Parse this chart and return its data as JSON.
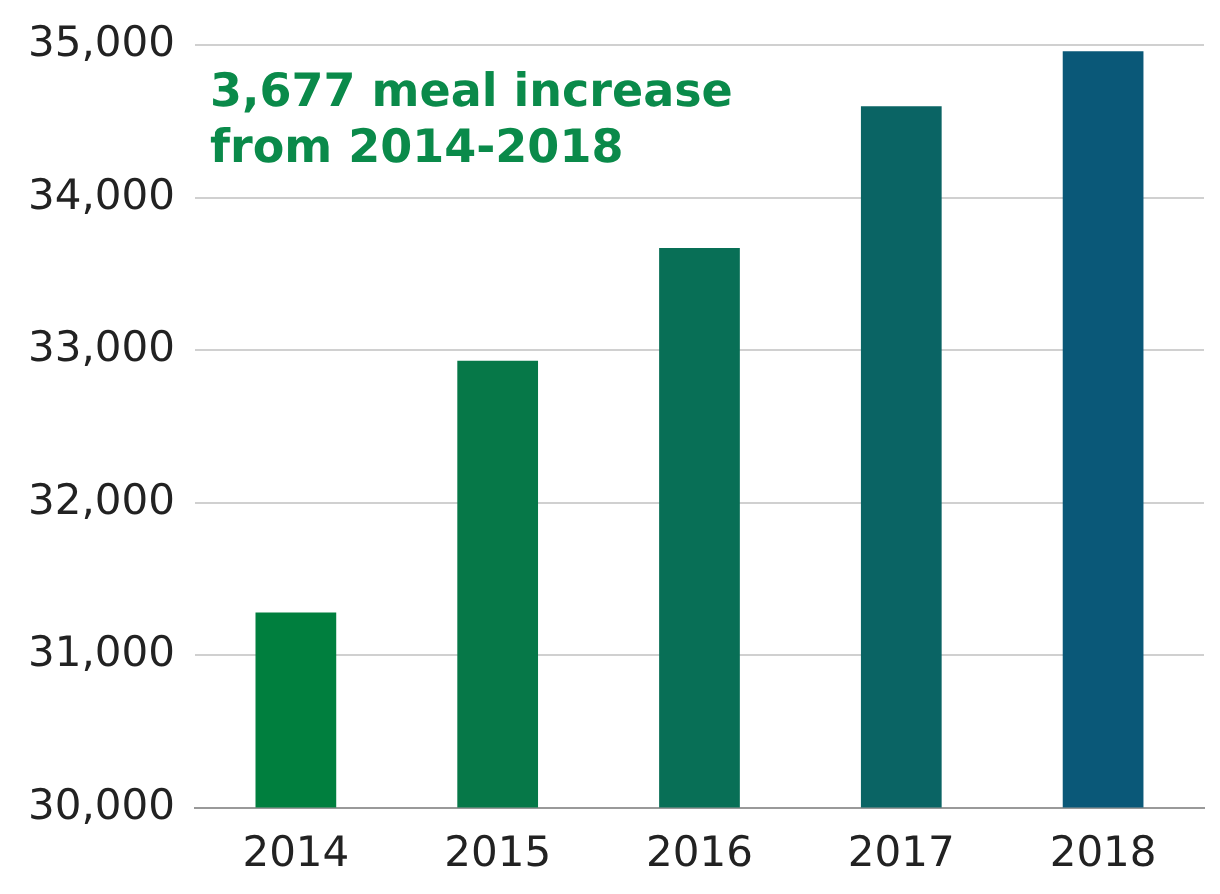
{
  "chart_data": {
    "type": "bar",
    "categories": [
      "2014",
      "2015",
      "2016",
      "2017",
      "2018"
    ],
    "values": [
      31280,
      32930,
      33670,
      34600,
      34960
    ],
    "colors": [
      "#007f3e",
      "#067848",
      "#086f56",
      "#0a6464",
      "#0a5878"
    ],
    "ylim": [
      30000,
      35000
    ],
    "yticks": [
      {
        "value": 30000,
        "label": "30,000"
      },
      {
        "value": 31000,
        "label": "31,000"
      },
      {
        "value": 32000,
        "label": "32,000"
      },
      {
        "value": 33000,
        "label": "33,000"
      },
      {
        "value": 34000,
        "label": "34,000"
      },
      {
        "value": 35000,
        "label": "35,000"
      }
    ],
    "grid": "y",
    "legend": false,
    "annotations": [
      "3,677 meal increase\nfrom 2014-2018"
    ]
  }
}
